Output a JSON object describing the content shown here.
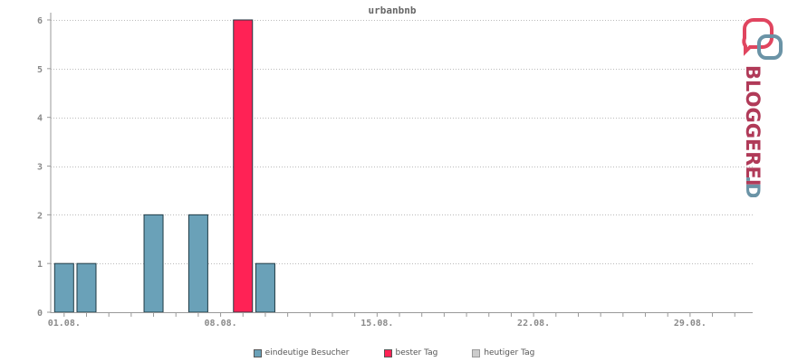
{
  "chart_data": {
    "type": "bar",
    "title": "urbanbnb",
    "ylim": [
      0,
      6
    ],
    "yticks": [
      0,
      1,
      2,
      3,
      4,
      5,
      6
    ],
    "xlim": [
      31.4,
      62.8
    ],
    "xtick_labels": [
      {
        "day": 32,
        "label": "01.08."
      },
      {
        "day": 39,
        "label": "08.08."
      },
      {
        "day": 46,
        "label": "15.08."
      },
      {
        "day": 53,
        "label": "22.08."
      },
      {
        "day": 60,
        "label": "29.08."
      }
    ],
    "bars": [
      {
        "day": 32,
        "value": 1,
        "series": "eindeutige Besucher"
      },
      {
        "day": 33,
        "value": 1,
        "series": "eindeutige Besucher"
      },
      {
        "day": 36,
        "value": 2,
        "series": "eindeutige Besucher"
      },
      {
        "day": 38,
        "value": 2,
        "series": "eindeutige Besucher"
      },
      {
        "day": 40,
        "value": 6,
        "series": "bester Tag"
      },
      {
        "day": 41,
        "value": 1,
        "series": "eindeutige Besucher"
      }
    ],
    "grid": true,
    "legend_position": "bottom-center"
  },
  "legend": [
    {
      "label": "eindeutige Besucher",
      "color": "#6aa1b8"
    },
    {
      "label": "bester Tag",
      "color": "#ff2255"
    },
    {
      "label": "heutiger Tag",
      "color": "#cccccc"
    }
  ],
  "colors": {
    "eindeutige Besucher": "#6aa1b8",
    "bester Tag": "#ff2255",
    "bar_stroke": "#1f3a44",
    "grid": "#bbbbbb",
    "axis": "#999999"
  },
  "logo": {
    "text_main": "BLOGGEREI",
    "text_suffix": ".DE",
    "icon": "speech-bubbles-icon"
  }
}
